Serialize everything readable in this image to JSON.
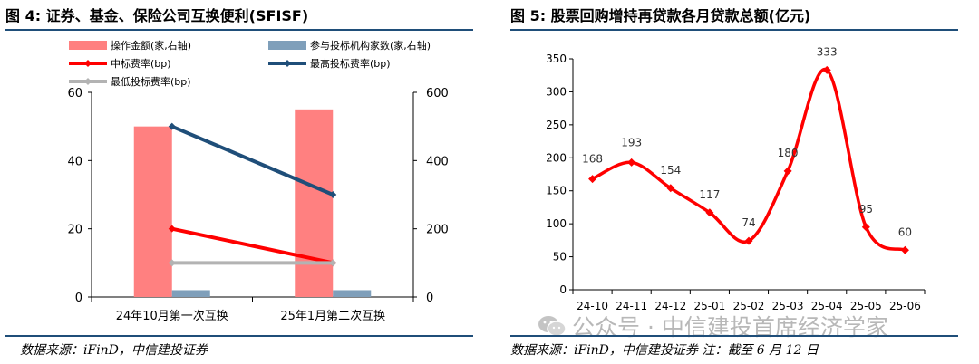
{
  "left_panel": {
    "title": "图 4: 证券、基金、保险公司互换便利(SFISF)",
    "source": "数据来源：iFinD，中信建投证券"
  },
  "right_panel": {
    "title": "图 5: 股票回购增持再贷款各月贷款总额(亿元)",
    "source": "数据来源：iFinD，中信建投证券    注：截至 6 月 12 日"
  },
  "watermark": {
    "text": "公众号 · 中信建投首席经济学家",
    "icon": "wechat-icon"
  },
  "chart_data": [
    {
      "type": "bar",
      "title": "",
      "categories": [
        "24年10月第一次互换",
        "25年1月第二次互换"
      ],
      "left_axis": {
        "ticks": [
          0,
          20,
          40,
          60
        ],
        "range": [
          0,
          60
        ]
      },
      "right_axis": {
        "ticks": [
          0,
          200,
          400,
          600
        ],
        "range": [
          0,
          600
        ]
      },
      "series": [
        {
          "name": "操作金额(家,右轴)",
          "kind": "bar",
          "axis": "right",
          "color": "#ff8080",
          "values": [
            500,
            550
          ]
        },
        {
          "name": "参与投标机构家数(家,右轴)",
          "kind": "bar",
          "axis": "right",
          "color": "#7f9fba",
          "values": [
            20,
            20
          ]
        },
        {
          "name": "中标费率(bp)",
          "kind": "line",
          "axis": "left",
          "color": "#ff0000",
          "values": [
            20,
            10
          ]
        },
        {
          "name": "最高投标费率(bp)",
          "kind": "line",
          "axis": "left",
          "color": "#1f4e79",
          "values": [
            50,
            30
          ]
        },
        {
          "name": "最低投标费率(bp)",
          "kind": "line",
          "axis": "left",
          "color": "#b3b3b3",
          "values": [
            10,
            10
          ]
        }
      ],
      "legend": "top"
    },
    {
      "type": "line",
      "title": "",
      "categories": [
        "24-10",
        "24-11",
        "24-12",
        "25-01",
        "25-02",
        "25-03",
        "25-04",
        "25-05",
        "25-06"
      ],
      "series": [
        {
          "name": "",
          "color": "#ff0000",
          "values": [
            168,
            193,
            154,
            117,
            74,
            180,
            333,
            95,
            60
          ]
        }
      ],
      "y_ticks": [
        0,
        50,
        100,
        150,
        200,
        250,
        300,
        350
      ],
      "ylim": [
        0,
        350
      ],
      "data_labels": [
        "168",
        "193",
        "154",
        "117",
        "74",
        "180",
        "333",
        "95",
        "60"
      ],
      "smooth": true
    }
  ]
}
